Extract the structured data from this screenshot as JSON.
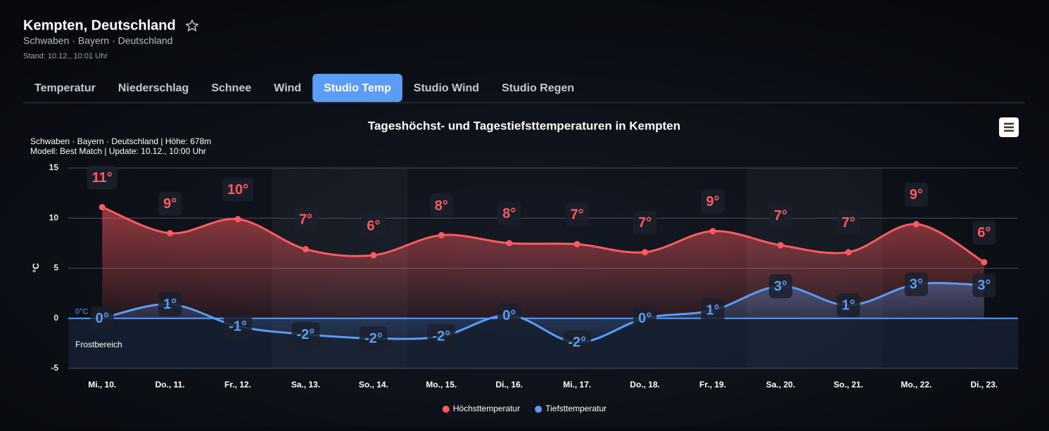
{
  "header": {
    "title": "Kempten, Deutschland",
    "subtitle": "Schwaben · Bayern · Deutschland",
    "stand": "Stand: 10.12., 10:01 Uhr"
  },
  "tabs": {
    "items": [
      "Temperatur",
      "Niederschlag",
      "Schnee",
      "Wind",
      "Studio Temp",
      "Studio Wind",
      "Studio Regen"
    ],
    "active": 4
  },
  "chart_data": {
    "type": "line",
    "title": "Tageshöchst- und Tagestiefsttemperaturen in Kempten",
    "subtitle": [
      "Schwaben · Bayern · Deutschland | Höhe: 678m",
      "Modell: Best Match | Update: 10.12., 10:00 Uhr"
    ],
    "y_label": "°C",
    "zero_label": "0°C",
    "frost_label": "Frostbereich",
    "categories": [
      "Mi., 10.",
      "Do., 11.",
      "Fr., 12.",
      "Sa., 13.",
      "So., 14.",
      "Mo., 15.",
      "Di., 16.",
      "Mi., 17.",
      "Do., 18.",
      "Fr., 19.",
      "Sa., 20.",
      "So., 21.",
      "Mo., 22.",
      "Di., 23."
    ],
    "series": [
      {
        "name": "Höchsttemperatur",
        "color": "#ff5a5f",
        "values": [
          11.1,
          8.5,
          9.9,
          6.9,
          6.3,
          8.3,
          7.5,
          7.4,
          6.6,
          8.7,
          7.3,
          6.6,
          9.4,
          5.6
        ],
        "value_labels": [
          "11°",
          "9°",
          "10°",
          "7°",
          "6°",
          "8°",
          "8°",
          "7°",
          "7°",
          "9°",
          "7°",
          "7°",
          "9°",
          "6°"
        ]
      },
      {
        "name": "Tiefsttemperatur",
        "color": "#5b9cf6",
        "values": [
          0.0,
          1.4,
          -0.8,
          -1.6,
          -2.0,
          -1.8,
          0.3,
          -2.4,
          0.0,
          0.8,
          3.2,
          1.3,
          3.4,
          3.3
        ],
        "value_labels": [
          "0°",
          "1°",
          "-1°",
          "-2°",
          "-2°",
          "-2°",
          "0°",
          "-2°",
          "0°",
          "1°",
          "3°",
          "1°",
          "3°",
          "3°"
        ]
      }
    ],
    "ylim": [
      -5,
      15
    ],
    "yticks": [
      -5,
      0,
      5,
      10,
      15
    ],
    "grid": true
  }
}
